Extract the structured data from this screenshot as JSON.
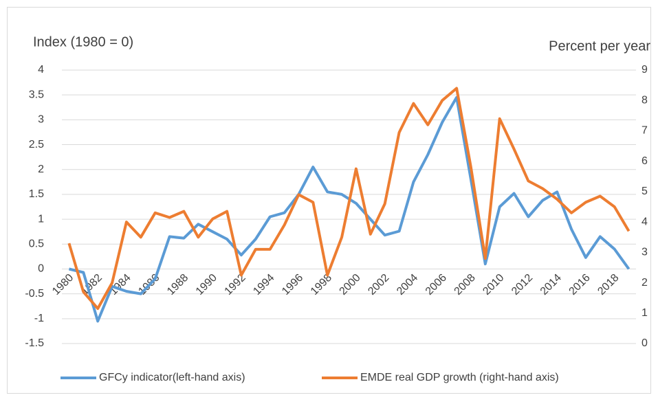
{
  "chart_data": {
    "type": "line",
    "ylabel": "Index (1980 = 0)",
    "y2label": "Percent per year",
    "categories": [
      "1980",
      null,
      "1982",
      null,
      "1984",
      null,
      "1986",
      null,
      "1988",
      null,
      "1990",
      null,
      "1992",
      null,
      "1994",
      null,
      "1996",
      null,
      "1998",
      null,
      "2000",
      null,
      "2002",
      null,
      "2004",
      null,
      "2006",
      null,
      "2008",
      null,
      "2010",
      null,
      "2012",
      null,
      "2014",
      null,
      "2016",
      null,
      "2018",
      null
    ],
    "series": [
      {
        "name": "GFCy indicator(left-hand axis)",
        "color": "#5b9bd5",
        "axis": "y",
        "values": [
          0,
          -0.07,
          -1.05,
          -0.35,
          -0.45,
          -0.5,
          -0.2,
          0.65,
          0.62,
          0.9,
          0.75,
          0.6,
          0.28,
          0.6,
          1.05,
          1.13,
          1.5,
          2.05,
          1.55,
          1.5,
          1.32,
          1.0,
          0.68,
          0.76,
          1.75,
          2.3,
          2.95,
          3.45,
          1.8,
          0.1,
          1.25,
          1.52,
          1.05,
          1.38,
          1.55,
          0.8,
          0.23,
          0.65,
          0.4,
          0
        ]
      },
      {
        "name": "EMDE real GDP growth (right-hand axis)",
        "color": "#ed7d31",
        "axis": "y2",
        "values": [
          3.3,
          1.7,
          1.15,
          2.0,
          4.0,
          3.5,
          4.3,
          4.15,
          4.35,
          3.5,
          4.1,
          4.35,
          2.25,
          3.1,
          3.1,
          3.9,
          4.9,
          4.65,
          2.25,
          3.5,
          5.75,
          3.6,
          4.6,
          6.95,
          7.9,
          7.2,
          8.0,
          8.4,
          5.8,
          2.8,
          7.4,
          6.4,
          5.35,
          5.1,
          4.75,
          4.3,
          4.65,
          4.85,
          4.5,
          3.7
        ]
      }
    ],
    "ylim": [
      -1.5,
      4
    ],
    "yticks": [
      -1.5,
      -1,
      -0.5,
      0,
      0.5,
      1,
      1.5,
      2,
      2.5,
      3,
      3.5,
      4
    ],
    "y2lim": [
      0,
      9
    ],
    "y2ticks": [
      0,
      1,
      2,
      3,
      4,
      5,
      6,
      7,
      8,
      9
    ],
    "grid": true,
    "legend": "bottom"
  }
}
